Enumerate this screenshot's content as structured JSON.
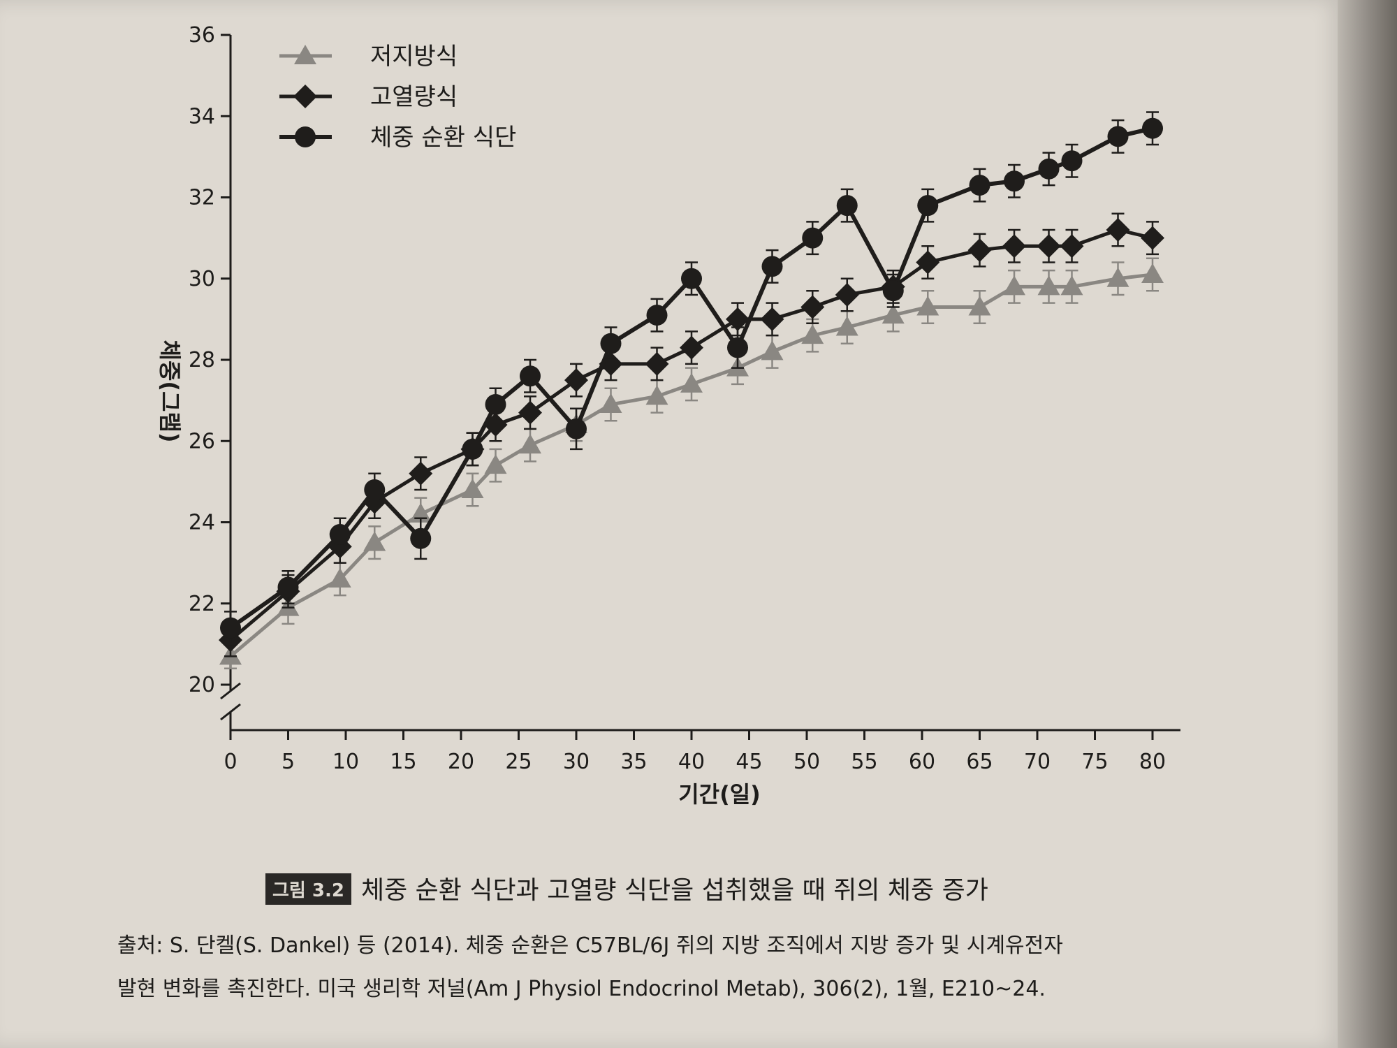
{
  "chart_data": {
    "type": "line",
    "title": "",
    "xlabel": "기간(일)",
    "ylabel": "체중(그램)",
    "xlim": [
      0,
      80
    ],
    "ylim": [
      20,
      36
    ],
    "x_ticks": [
      0,
      5,
      10,
      15,
      20,
      25,
      30,
      35,
      40,
      45,
      50,
      55,
      60,
      65,
      70,
      75,
      80
    ],
    "y_ticks": [
      20,
      22,
      24,
      26,
      28,
      30,
      32,
      34,
      36
    ],
    "y_axis_break": true,
    "grid": false,
    "legend_position": "top-left",
    "error_bars": true,
    "series": [
      {
        "name": "저지방식",
        "marker": "triangle",
        "color": "#8a8782",
        "x": [
          0,
          5,
          9.5,
          12.5,
          16.5,
          21,
          23,
          26,
          30,
          33,
          37,
          40,
          44,
          47,
          50.5,
          53.5,
          57.5,
          60.5,
          65,
          68,
          71,
          73,
          77,
          80
        ],
        "y": [
          20.7,
          21.9,
          22.6,
          23.5,
          24.2,
          24.8,
          25.4,
          25.9,
          26.4,
          26.9,
          27.1,
          27.4,
          27.8,
          28.2,
          28.6,
          28.8,
          29.1,
          29.3,
          29.3,
          29.8,
          29.8,
          29.8,
          30.0,
          30.1
        ],
        "error": [
          0.3,
          0.4,
          0.4,
          0.4,
          0.4,
          0.4,
          0.4,
          0.4,
          0.4,
          0.4,
          0.4,
          0.4,
          0.4,
          0.4,
          0.4,
          0.4,
          0.4,
          0.4,
          0.4,
          0.4,
          0.4,
          0.4,
          0.4,
          0.4
        ]
      },
      {
        "name": "고열량식",
        "marker": "diamond",
        "color": "#1f1d1b",
        "x": [
          0,
          5,
          9.5,
          12.5,
          16.5,
          21,
          23,
          26,
          30,
          33,
          37,
          40,
          44,
          47,
          50.5,
          53.5,
          57.5,
          60.5,
          65,
          68,
          71,
          73,
          77,
          80
        ],
        "y": [
          21.1,
          22.3,
          23.4,
          24.5,
          25.2,
          25.8,
          26.4,
          26.7,
          27.5,
          27.9,
          27.9,
          28.3,
          29.0,
          29.0,
          29.3,
          29.6,
          29.8,
          30.4,
          30.7,
          30.8,
          30.8,
          30.8,
          31.2,
          31.0
        ],
        "error": [
          0.4,
          0.4,
          0.4,
          0.4,
          0.4,
          0.4,
          0.4,
          0.4,
          0.4,
          0.4,
          0.4,
          0.4,
          0.4,
          0.4,
          0.4,
          0.4,
          0.4,
          0.4,
          0.4,
          0.4,
          0.4,
          0.4,
          0.4,
          0.4
        ]
      },
      {
        "name": "체중 순환 식단",
        "marker": "circle",
        "color": "#1f1d1b",
        "x": [
          0,
          5,
          9.5,
          12.5,
          16.5,
          21,
          23,
          26,
          30,
          33,
          37,
          40,
          44,
          47,
          50.5,
          53.5,
          57.5,
          60.5,
          65,
          68,
          71,
          73,
          77,
          80
        ],
        "y": [
          21.4,
          22.4,
          23.7,
          24.8,
          23.6,
          25.8,
          26.9,
          27.6,
          26.3,
          28.4,
          29.1,
          30.0,
          28.3,
          30.3,
          31.0,
          31.8,
          29.7,
          31.8,
          32.3,
          32.4,
          32.7,
          32.9,
          33.5,
          33.7
        ],
        "error": [
          0.4,
          0.4,
          0.4,
          0.4,
          0.5,
          0.4,
          0.4,
          0.4,
          0.5,
          0.4,
          0.4,
          0.4,
          0.5,
          0.4,
          0.4,
          0.4,
          0.4,
          0.4,
          0.4,
          0.4,
          0.4,
          0.4,
          0.4,
          0.4
        ]
      }
    ]
  },
  "caption": {
    "badge": "그림 3.2",
    "text": "체중 순환 식단과 고열량 식단을 섭취했을 때 쥐의 체중 증가"
  },
  "source": {
    "line1": "출처: S. 단켈(S. Dankel) 등 (2014). 체중 순환은 C57BL/6J 쥐의 지방 조직에서 지방 증가 및 시계유전자",
    "line2": "발현 변화를 촉진한다. 미국 생리학 저널(Am J Physiol Endocrinol Metab), 306(2), 1월, E210~24."
  }
}
